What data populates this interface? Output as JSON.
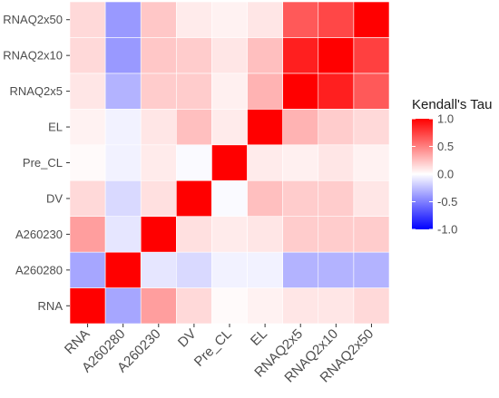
{
  "chart_data": {
    "type": "heatmap",
    "x_categories": [
      "RNA",
      "A260280",
      "A260230",
      "DV",
      "Pre_CL",
      "EL",
      "RNAQ2x5",
      "RNAQ2x10",
      "RNAQ2x50"
    ],
    "y_categories": [
      "RNA",
      "A260280",
      "A260230",
      "DV",
      "Pre_CL",
      "EL",
      "RNAQ2x5",
      "RNAQ2x10",
      "RNAQ2x50"
    ],
    "values": [
      [
        1.0,
        -0.35,
        0.38,
        0.15,
        0.02,
        0.05,
        0.1,
        0.1,
        0.15
      ],
      [
        -0.35,
        1.0,
        -0.1,
        -0.15,
        -0.05,
        -0.05,
        -0.3,
        -0.3,
        -0.3
      ],
      [
        0.38,
        -0.1,
        1.0,
        0.12,
        0.08,
        0.1,
        0.2,
        0.2,
        0.2
      ],
      [
        0.15,
        -0.15,
        0.12,
        1.0,
        -0.02,
        0.25,
        0.2,
        0.2,
        0.1
      ],
      [
        0.02,
        -0.05,
        0.08,
        -0.02,
        1.0,
        0.08,
        0.06,
        0.1,
        0.05
      ],
      [
        0.05,
        -0.05,
        0.1,
        0.25,
        0.08,
        1.0,
        0.3,
        0.2,
        0.15
      ],
      [
        0.1,
        -0.3,
        0.2,
        0.2,
        0.06,
        0.3,
        1.0,
        0.88,
        0.65
      ],
      [
        0.15,
        -0.4,
        0.22,
        0.2,
        0.1,
        0.25,
        0.88,
        1.0,
        0.75
      ],
      [
        0.15,
        -0.4,
        0.22,
        0.08,
        0.05,
        0.1,
        0.65,
        0.72,
        1.0
      ]
    ],
    "color_scale": {
      "low": "#0000ff",
      "mid": "#ffffff",
      "high": "#ff0000",
      "limits": [
        -1,
        1
      ]
    },
    "legend": {
      "title": "Kendall's Tau",
      "ticks": [
        "1.0",
        "0.5",
        "0.0",
        "-0.5",
        "-1.0"
      ],
      "tick_values": [
        1,
        0.5,
        0,
        -0.5,
        -1
      ],
      "position": "right"
    },
    "panel_background": "#ebebeb"
  }
}
